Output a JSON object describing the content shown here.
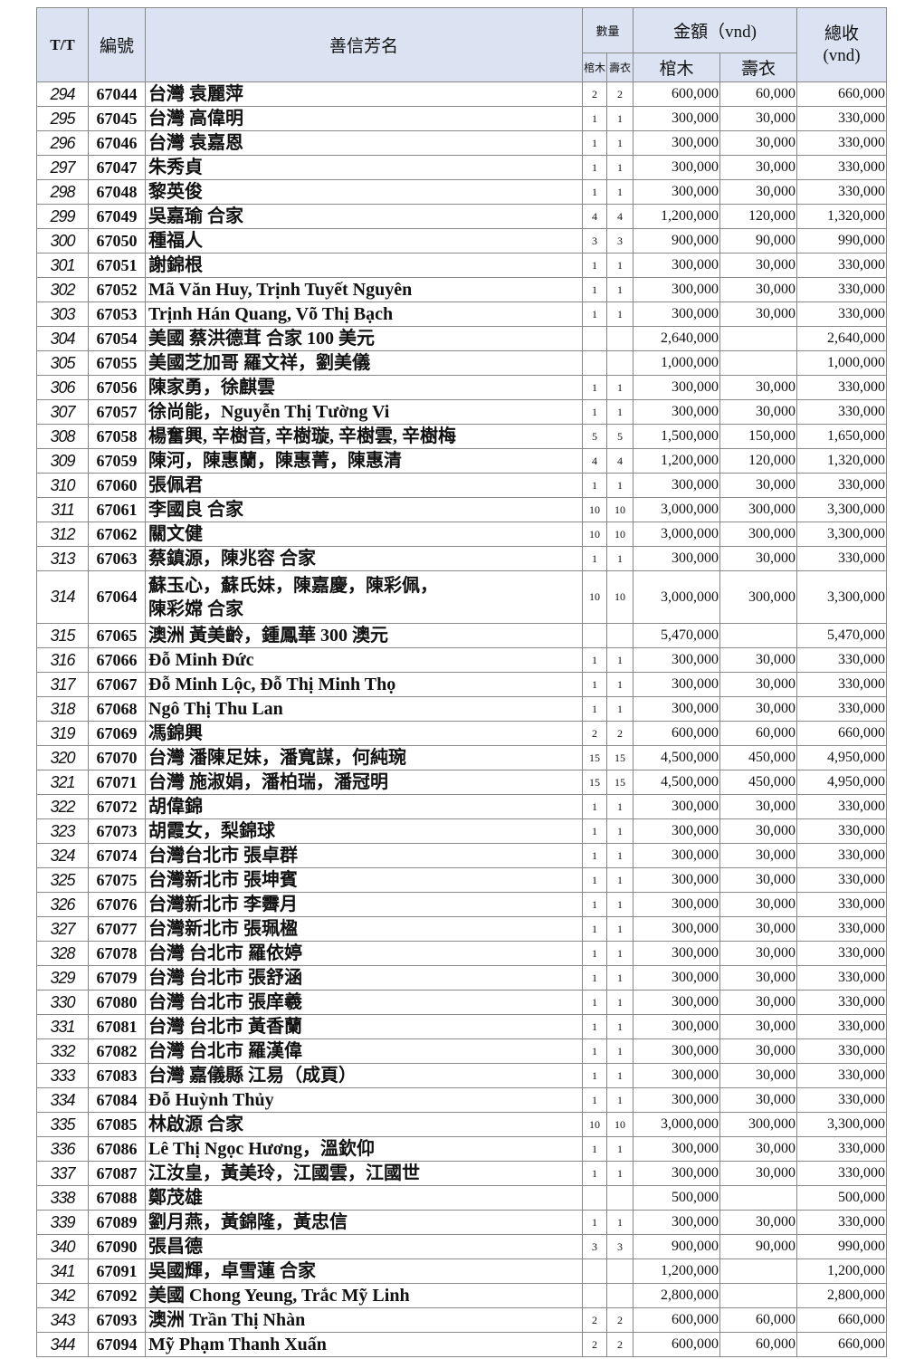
{
  "header": {
    "tt": "T/T",
    "code": "編號",
    "name": "善信芳名",
    "quantity": "數量",
    "amount": "金額（vnd)",
    "total": "總收\n(vnd)",
    "coffin": "棺木",
    "shroud": "壽衣",
    "coffin_amount": "棺木",
    "shroud_amount": "壽衣"
  },
  "rows": [
    [
      "294",
      "67044",
      "台灣 袁麗萍",
      "2",
      "2",
      "600,000",
      "60,000",
      "660,000"
    ],
    [
      "295",
      "67045",
      "台灣 高偉明",
      "1",
      "1",
      "300,000",
      "30,000",
      "330,000"
    ],
    [
      "296",
      "67046",
      "台灣 袁嘉恩",
      "1",
      "1",
      "300,000",
      "30,000",
      "330,000"
    ],
    [
      "297",
      "67047",
      "朱秀貞",
      "1",
      "1",
      "300,000",
      "30,000",
      "330,000"
    ],
    [
      "298",
      "67048",
      "黎英俊",
      "1",
      "1",
      "300,000",
      "30,000",
      "330,000"
    ],
    [
      "299",
      "67049",
      "吳嘉瑜 合家",
      "4",
      "4",
      "1,200,000",
      "120,000",
      "1,320,000"
    ],
    [
      "300",
      "67050",
      "種福人",
      "3",
      "3",
      "900,000",
      "90,000",
      "990,000"
    ],
    [
      "301",
      "67051",
      "謝錦根",
      "1",
      "1",
      "300,000",
      "30,000",
      "330,000"
    ],
    [
      "302",
      "67052",
      "Mã Văn Huy, Trịnh Tuyết Nguyên",
      "1",
      "1",
      "300,000",
      "30,000",
      "330,000"
    ],
    [
      "303",
      "67053",
      "Trịnh Hán Quang, Võ Thị Bạch",
      "1",
      "1",
      "300,000",
      "30,000",
      "330,000"
    ],
    [
      "304",
      "67054",
      "美國 蔡洪德茸 合家 100 美元",
      "",
      "",
      "2,640,000",
      "",
      "2,640,000"
    ],
    [
      "305",
      "67055",
      "美國芝加哥 羅文祥，劉美儀",
      "",
      "",
      "1,000,000",
      "",
      "1,000,000"
    ],
    [
      "306",
      "67056",
      "陳家勇，徐麒雲",
      "1",
      "1",
      "300,000",
      "30,000",
      "330,000"
    ],
    [
      "307",
      "67057",
      "徐尚能，Nguyễn Thị Tường Vi",
      "1",
      "1",
      "300,000",
      "30,000",
      "330,000"
    ],
    [
      "308",
      "67058",
      "楊奮興, 辛樹音, 辛樹璇, 辛樹雲, 辛樹梅",
      "5",
      "5",
      "1,500,000",
      "150,000",
      "1,650,000"
    ],
    [
      "309",
      "67059",
      "陳河，陳惠蘭，陳惠菁，陳惠清",
      "4",
      "4",
      "1,200,000",
      "120,000",
      "1,320,000"
    ],
    [
      "310",
      "67060",
      "張佩君",
      "1",
      "1",
      "300,000",
      "30,000",
      "330,000"
    ],
    [
      "311",
      "67061",
      "李國良 合家",
      "10",
      "10",
      "3,000,000",
      "300,000",
      "3,300,000"
    ],
    [
      "312",
      "67062",
      "關文健",
      "10",
      "10",
      "3,000,000",
      "300,000",
      "3,300,000"
    ],
    [
      "313",
      "67063",
      "蔡鎮源，陳兆容 合家",
      "1",
      "1",
      "300,000",
      "30,000",
      "330,000"
    ],
    [
      "314",
      "67064",
      "蘇玉心，蘇氏妹，陳嘉慶，陳彩佩，\n陳彩嫦 合家",
      "10",
      "10",
      "3,000,000",
      "300,000",
      "3,300,000"
    ],
    [
      "315",
      "67065",
      "澳洲 黃美齡，鍾鳳華 300 澳元",
      "",
      "",
      "5,470,000",
      "",
      "5,470,000"
    ],
    [
      "316",
      "67066",
      "Đỗ Minh Đức",
      "1",
      "1",
      "300,000",
      "30,000",
      "330,000"
    ],
    [
      "317",
      "67067",
      "Đỗ Minh Lộc, Đỗ Thị Minh Thọ",
      "1",
      "1",
      "300,000",
      "30,000",
      "330,000"
    ],
    [
      "318",
      "67068",
      "Ngô Thị Thu Lan",
      "1",
      "1",
      "300,000",
      "30,000",
      "330,000"
    ],
    [
      "319",
      "67069",
      "馮錦興",
      "2",
      "2",
      "600,000",
      "60,000",
      "660,000"
    ],
    [
      "320",
      "67070",
      "台灣 潘陳足妹，潘寬謀，何純琬",
      "15",
      "15",
      "4,500,000",
      "450,000",
      "4,950,000"
    ],
    [
      "321",
      "67071",
      "台灣 施淑娟，潘柏瑞，潘冠明",
      "15",
      "15",
      "4,500,000",
      "450,000",
      "4,950,000"
    ],
    [
      "322",
      "67072",
      "胡偉錦",
      "1",
      "1",
      "300,000",
      "30,000",
      "330,000"
    ],
    [
      "323",
      "67073",
      "胡霞女，梨錦球",
      "1",
      "1",
      "300,000",
      "30,000",
      "330,000"
    ],
    [
      "324",
      "67074",
      "台灣台北市 張卓群",
      "1",
      "1",
      "300,000",
      "30,000",
      "330,000"
    ],
    [
      "325",
      "67075",
      "台灣新北市 張坤賓",
      "1",
      "1",
      "300,000",
      "30,000",
      "330,000"
    ],
    [
      "326",
      "67076",
      "台灣新北市 李霽月",
      "1",
      "1",
      "300,000",
      "30,000",
      "330,000"
    ],
    [
      "327",
      "67077",
      "台灣新北市 張珮楹",
      "1",
      "1",
      "300,000",
      "30,000",
      "330,000"
    ],
    [
      "328",
      "67078",
      "台灣 台北市 羅依婷",
      "1",
      "1",
      "300,000",
      "30,000",
      "330,000"
    ],
    [
      "329",
      "67079",
      "台灣 台北市 張舒涵",
      "1",
      "1",
      "300,000",
      "30,000",
      "330,000"
    ],
    [
      "330",
      "67080",
      "台灣 台北市 張庠羲",
      "1",
      "1",
      "300,000",
      "30,000",
      "330,000"
    ],
    [
      "331",
      "67081",
      "台灣 台北市 黃香蘭",
      "1",
      "1",
      "300,000",
      "30,000",
      "330,000"
    ],
    [
      "332",
      "67082",
      "台灣 台北市 羅漢偉",
      "1",
      "1",
      "300,000",
      "30,000",
      "330,000"
    ],
    [
      "333",
      "67083",
      "台灣 嘉儀縣 江易（成頁）",
      "1",
      "1",
      "300,000",
      "30,000",
      "330,000"
    ],
    [
      "334",
      "67084",
      "Đỗ Huỳnh Thủy",
      "1",
      "1",
      "300,000",
      "30,000",
      "330,000"
    ],
    [
      "335",
      "67085",
      "林啟源 合家",
      "10",
      "10",
      "3,000,000",
      "300,000",
      "3,300,000"
    ],
    [
      "336",
      "67086",
      "Lê Thị Ngọc Hương，溫欽仰",
      "1",
      "1",
      "300,000",
      "30,000",
      "330,000"
    ],
    [
      "337",
      "67087",
      "江汝皇，黃美玲，江國雲，江國世",
      "1",
      "1",
      "300,000",
      "30,000",
      "330,000"
    ],
    [
      "338",
      "67088",
      "鄭茂雄",
      "",
      "",
      "500,000",
      "",
      "500,000"
    ],
    [
      "339",
      "67089",
      "劉月燕，黃錦隆，黃忠信",
      "1",
      "1",
      "300,000",
      "30,000",
      "330,000"
    ],
    [
      "340",
      "67090",
      "張昌德",
      "3",
      "3",
      "900,000",
      "90,000",
      "990,000"
    ],
    [
      "341",
      "67091",
      "吳國輝，卓雪蓮 合家",
      "",
      "",
      "1,200,000",
      "",
      "1,200,000"
    ],
    [
      "342",
      "67092",
      "美國 Chong Yeung, Trắc Mỹ Linh",
      "",
      "",
      "2,800,000",
      "",
      "2,800,000"
    ],
    [
      "343",
      "67093",
      "澳洲 Trần Thị Nhàn",
      "2",
      "2",
      "600,000",
      "60,000",
      "660,000"
    ],
    [
      "344",
      "67094",
      "Mỹ  Phạm Thanh Xuấn",
      "2",
      "2",
      "600,000",
      "60,000",
      "660,000"
    ]
  ]
}
